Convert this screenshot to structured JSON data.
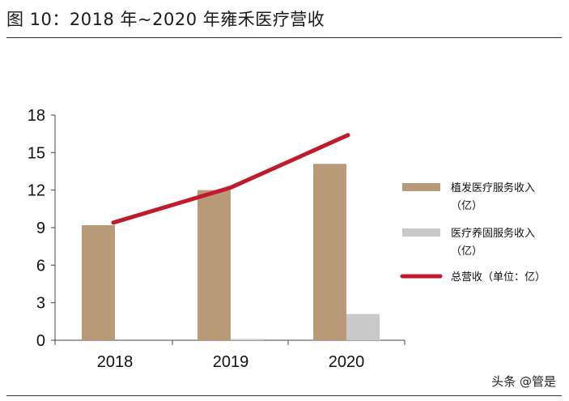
{
  "title": "图 10：2018 年~2020 年雍禾医疗营收",
  "watermark": "头条 @管是",
  "chart_data": {
    "type": "bar",
    "categories": [
      "2018",
      "2019",
      "2020"
    ],
    "ylim": [
      0,
      18
    ],
    "yticks": [
      "0",
      "3",
      "6",
      "9",
      "12",
      "15",
      "18"
    ],
    "series": [
      {
        "name": "植发医疗服务收入（亿）",
        "type": "bar",
        "color": "#b99a78",
        "values": [
          9.2,
          12.0,
          14.1
        ]
      },
      {
        "name": "医疗养固服务收入（亿）",
        "type": "bar",
        "color": "#c9c9c9",
        "values": [
          0,
          0.1,
          2.1
        ]
      },
      {
        "name": "总营收（单位：亿）",
        "type": "line",
        "color": "#c01a2c",
        "values": [
          9.4,
          12.2,
          16.4
        ]
      }
    ],
    "legend": [
      {
        "line1": "植发医疗服务收入",
        "line2": "（亿）"
      },
      {
        "line1": "医疗养固服务收入",
        "line2": "（亿）"
      },
      {
        "line1": "总营收（单位：亿）",
        "line2": ""
      }
    ],
    "legend_position": "right",
    "grid": false
  }
}
